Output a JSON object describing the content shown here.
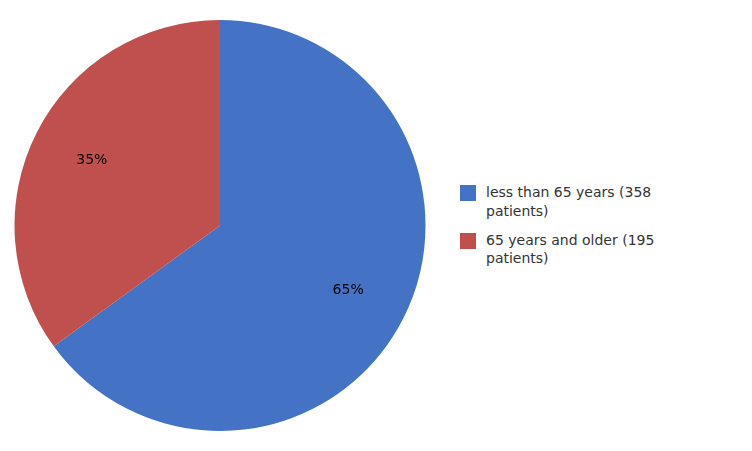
{
  "chart_data": {
    "type": "pie",
    "categories": [
      "less than 65 years (358\npatients)",
      "65 years and older (195\npatients)"
    ],
    "values": [
      65,
      35
    ],
    "value_labels": [
      "65%",
      "35%"
    ],
    "colors": [
      "#4472C4",
      "#C0504D"
    ],
    "data_labels": true,
    "legend": "right"
  }
}
